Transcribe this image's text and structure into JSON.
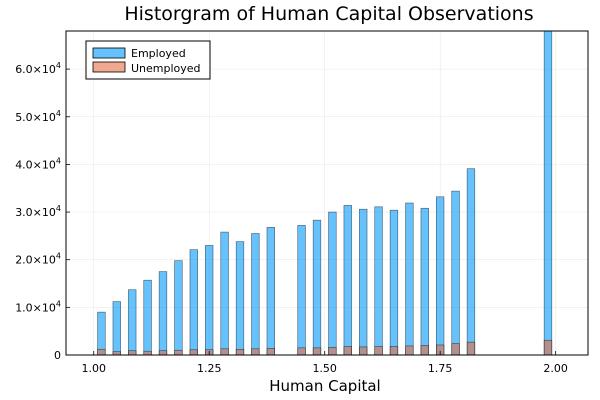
{
  "chart_data": {
    "type": "bar",
    "title": "Historgram of Human Capital Observations",
    "xlabel": "Human Capital",
    "ylabel": "",
    "xlim": [
      0.94,
      2.07
    ],
    "ylim": [
      0,
      68000
    ],
    "bin_width": 0.0333,
    "grid": true,
    "legend_position": "top-left",
    "x_ticks": [
      1.0,
      1.25,
      1.5,
      1.75,
      2.0
    ],
    "x_tick_labels": [
      "1.00",
      "1.25",
      "1.50",
      "1.75",
      "2.00"
    ],
    "y_ticks": [
      0,
      10000,
      20000,
      30000,
      40000,
      50000,
      60000
    ],
    "y_tick_labels": [
      {
        "mantissa": "0",
        "exp": ""
      },
      {
        "mantissa": "1.0×10",
        "exp": "4"
      },
      {
        "mantissa": "2.0×10",
        "exp": "4"
      },
      {
        "mantissa": "3.0×10",
        "exp": "4"
      },
      {
        "mantissa": "4.0×10",
        "exp": "4"
      },
      {
        "mantissa": "5.0×10",
        "exp": "4"
      },
      {
        "mantissa": "6.0×10",
        "exp": "4"
      }
    ],
    "bin_starts": [
      1.0,
      1.0333,
      1.0667,
      1.1,
      1.1333,
      1.1667,
      1.2,
      1.2333,
      1.2667,
      1.3,
      1.3333,
      1.3667,
      1.4,
      1.4333,
      1.4667,
      1.5,
      1.5333,
      1.5667,
      1.6,
      1.6333,
      1.6667,
      1.7,
      1.7333,
      1.7667,
      1.8,
      1.8333,
      1.8667,
      1.9,
      1.9333,
      1.9667
    ],
    "series": [
      {
        "name": "Employed",
        "color": "#009AFA",
        "opacity": 0.6,
        "bins": [
          {
            "x": 1.0,
            "value": 9000
          },
          {
            "x": 1.0333,
            "value": 11200
          },
          {
            "x": 1.0667,
            "value": 13700
          },
          {
            "x": 1.1,
            "value": 15700
          },
          {
            "x": 1.1333,
            "value": 17500
          },
          {
            "x": 1.1667,
            "value": 19800
          },
          {
            "x": 1.2,
            "value": 22100
          },
          {
            "x": 1.2333,
            "value": 23000
          },
          {
            "x": 1.2667,
            "value": 25800
          },
          {
            "x": 1.3,
            "value": 23800
          },
          {
            "x": 1.3333,
            "value": 25500
          },
          {
            "x": 1.3667,
            "value": 26800
          },
          {
            "x": 1.4333,
            "value": 27200
          },
          {
            "x": 1.4667,
            "value": 28300
          },
          {
            "x": 1.5,
            "value": 30000
          },
          {
            "x": 1.5333,
            "value": 31400
          },
          {
            "x": 1.5667,
            "value": 30600
          },
          {
            "x": 1.6,
            "value": 31100
          },
          {
            "x": 1.6333,
            "value": 30400
          },
          {
            "x": 1.6667,
            "value": 31900
          },
          {
            "x": 1.7,
            "value": 30800
          },
          {
            "x": 1.7333,
            "value": 33200
          },
          {
            "x": 1.7667,
            "value": 34400
          },
          {
            "x": 1.8,
            "value": 39100
          },
          {
            "x": 1.9667,
            "value": 68000
          }
        ]
      },
      {
        "name": "Unemployed",
        "color": "#E26F46",
        "opacity": 0.6,
        "bins": [
          {
            "x": 1.0,
            "value": 1200
          },
          {
            "x": 1.0333,
            "value": 700
          },
          {
            "x": 1.0667,
            "value": 900
          },
          {
            "x": 1.1,
            "value": 800
          },
          {
            "x": 1.1333,
            "value": 900
          },
          {
            "x": 1.1667,
            "value": 1000
          },
          {
            "x": 1.2,
            "value": 1100
          },
          {
            "x": 1.2333,
            "value": 1100
          },
          {
            "x": 1.2667,
            "value": 1300
          },
          {
            "x": 1.3,
            "value": 1200
          },
          {
            "x": 1.3333,
            "value": 1300
          },
          {
            "x": 1.3667,
            "value": 1400
          },
          {
            "x": 1.4333,
            "value": 1500
          },
          {
            "x": 1.4667,
            "value": 1500
          },
          {
            "x": 1.5,
            "value": 1600
          },
          {
            "x": 1.5333,
            "value": 1800
          },
          {
            "x": 1.5667,
            "value": 1700
          },
          {
            "x": 1.6,
            "value": 1800
          },
          {
            "x": 1.6333,
            "value": 1800
          },
          {
            "x": 1.6667,
            "value": 1900
          },
          {
            "x": 1.7,
            "value": 2000
          },
          {
            "x": 1.7333,
            "value": 2100
          },
          {
            "x": 1.7667,
            "value": 2400
          },
          {
            "x": 1.8,
            "value": 2700
          },
          {
            "x": 1.9667,
            "value": 3100
          }
        ]
      }
    ]
  }
}
